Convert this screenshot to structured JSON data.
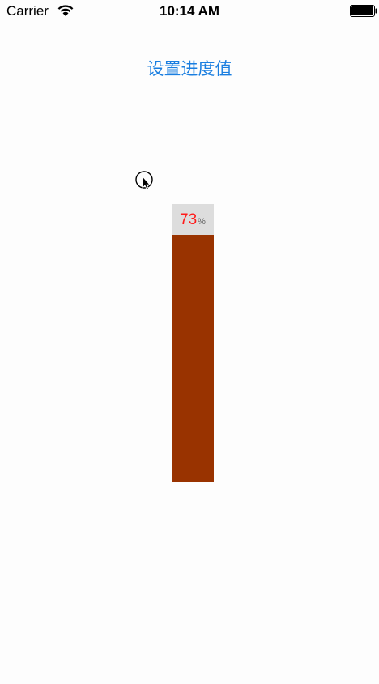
{
  "status_bar": {
    "carrier": "Carrier",
    "time": "10:14 AM",
    "wifi_icon": "wifi-icon",
    "battery_icon": "battery-icon"
  },
  "main": {
    "set_progress_button": "设置进度值",
    "progress": {
      "percent": 73,
      "value_text": "73",
      "unit": "%",
      "track_color": "#dddddd",
      "fill_color": "#993300",
      "value_color": "#ff1a1a",
      "unit_color": "#666666"
    }
  },
  "colors": {
    "accent": "#1a7ee0",
    "background": "#fdfdfd"
  }
}
